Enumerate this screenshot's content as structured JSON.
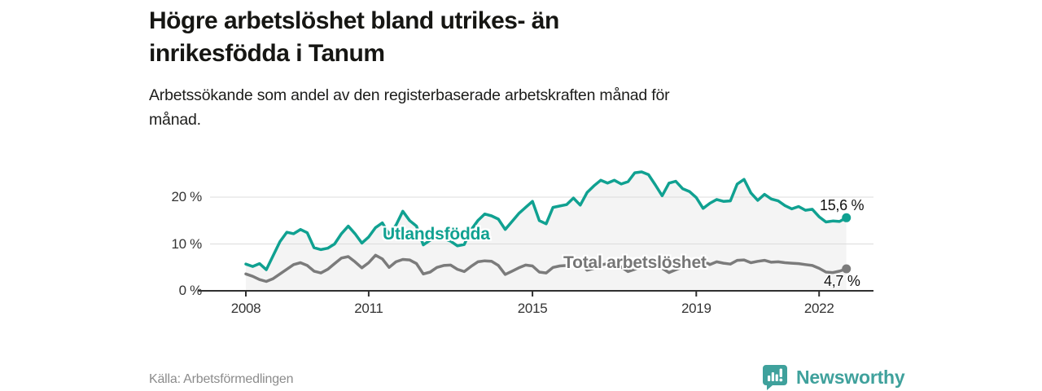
{
  "header": {
    "title_lines": [
      "Högre arbetslöshet bland utrikes- än",
      "inrikesfödda i Tanum"
    ],
    "subtitle_lines": [
      "Arbetssökande som andel av den registerbaserade arbetskraften månad för",
      "månad."
    ]
  },
  "footer": {
    "source": "Källa: Arbetsförmedlingen",
    "brand": "Newsworthy",
    "brand_color": "#3fa19c"
  },
  "chart_data": {
    "type": "line",
    "title": "Högre arbetslöshet bland utrikes- än inrikesfödda i Tanum",
    "subtitle": "Arbetssökande som andel av den registerbaserade arbetskraften månad för månad.",
    "x_start_year": 2008,
    "x_step_years": 0.16667,
    "ylim": [
      0,
      27.5
    ],
    "grid": true,
    "grid_color": "#dcdcdc",
    "axis_color": "#303030",
    "area_fill": "#f4f4f4",
    "y_axis": {
      "ticks": [
        {
          "value": 0,
          "label": "0 %"
        },
        {
          "value": 10,
          "label": "10 %"
        },
        {
          "value": 20,
          "label": "20 %"
        }
      ]
    },
    "x_axis": {
      "ticks": [
        {
          "value": 2008,
          "label": "2008"
        },
        {
          "value": 2011,
          "label": "2011"
        },
        {
          "value": 2015,
          "label": "2015"
        },
        {
          "value": 2019,
          "label": "2019"
        },
        {
          "value": 2022,
          "label": "2022"
        }
      ]
    },
    "series": [
      {
        "name": "Utlandsfödda",
        "color": "#10a191",
        "end_label": "15,6 %",
        "end_value": 15.6,
        "values": [
          5.7,
          5.2,
          5.8,
          4.5,
          7.5,
          10.5,
          12.5,
          12.2,
          13.1,
          12.4,
          9.2,
          8.8,
          9.1,
          10.0,
          12.2,
          13.8,
          12.2,
          10.2,
          11.5,
          13.5,
          14.5,
          12.1,
          14.0,
          17.0,
          15.0,
          13.8,
          9.8,
          10.8,
          11.5,
          11.2,
          10.6,
          9.6,
          9.9,
          13.0,
          15.0,
          16.4,
          16.0,
          15.3,
          13.1,
          14.8,
          16.5,
          17.8,
          19.1,
          15.0,
          14.3,
          17.8,
          18.1,
          18.4,
          19.8,
          18.3,
          21.0,
          22.4,
          23.6,
          23.0,
          23.6,
          22.8,
          23.3,
          25.2,
          25.4,
          24.8,
          22.6,
          20.3,
          23.0,
          23.4,
          21.8,
          21.2,
          19.9,
          17.6,
          18.7,
          19.5,
          19.1,
          19.2,
          22.8,
          23.8,
          20.9,
          19.3,
          20.6,
          19.6,
          19.2,
          18.2,
          17.5,
          18.0,
          17.2,
          17.4,
          15.8,
          14.7,
          14.9,
          14.8,
          15.6
        ]
      },
      {
        "name": "Total arbetslöshet",
        "color": "#7b7b7b",
        "end_label": "4,7 %",
        "end_value": 4.7,
        "values": [
          3.6,
          3.1,
          2.4,
          2.0,
          2.6,
          3.6,
          4.6,
          5.6,
          6.0,
          5.4,
          4.2,
          3.8,
          4.6,
          5.8,
          7.0,
          7.3,
          6.2,
          4.9,
          6.0,
          7.6,
          6.8,
          5.0,
          6.2,
          6.7,
          6.6,
          5.8,
          3.6,
          4.0,
          5.0,
          5.4,
          5.5,
          4.6,
          4.1,
          5.2,
          6.2,
          6.4,
          6.3,
          5.4,
          3.5,
          4.2,
          4.9,
          5.5,
          5.3,
          4.0,
          3.8,
          5.0,
          5.3,
          5.4,
          5.9,
          6.1,
          4.4,
          4.8,
          5.5,
          5.8,
          6.0,
          5.1,
          4.1,
          4.6,
          5.3,
          5.6,
          5.9,
          4.8,
          3.9,
          4.5,
          5.1,
          5.3,
          5.7,
          6.4,
          5.6,
          6.2,
          5.9,
          5.7,
          6.5,
          6.6,
          6.0,
          6.3,
          6.5,
          6.1,
          6.2,
          6.0,
          5.9,
          5.8,
          5.6,
          5.4,
          4.8,
          4.0,
          3.9,
          4.2,
          4.7
        ]
      }
    ],
    "legend_position": "inline-labels"
  }
}
